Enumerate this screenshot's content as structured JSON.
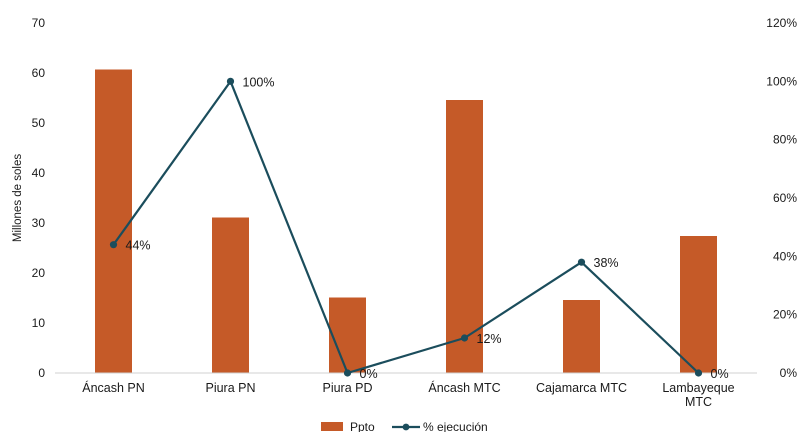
{
  "chart_data": {
    "type": "bar",
    "categories": [
      [
        "Áncash PN"
      ],
      [
        "Piura PN"
      ],
      [
        "Piura PD"
      ],
      [
        "Áncash MTC"
      ],
      [
        "Cajamarca MTC"
      ],
      [
        "Lambayeque",
        "MTC"
      ]
    ],
    "series": [
      {
        "name": "Ppto",
        "type": "bar",
        "axis": "left",
        "color": "#C55A28",
        "values": [
          60.7,
          31.1,
          15.1,
          54.6,
          14.6,
          27.4
        ]
      },
      {
        "name": "% ejecución",
        "type": "line",
        "axis": "right",
        "color": "#1B4D5C",
        "values": [
          44,
          100,
          0,
          12,
          38,
          0
        ],
        "labels": [
          "44%",
          "100%",
          "0%",
          "12%",
          "38%",
          "0%"
        ]
      }
    ],
    "ylabel": "Millones de soles",
    "ylim": [
      0,
      70
    ],
    "yticks": [
      "0",
      "10",
      "20",
      "30",
      "40",
      "50",
      "60",
      "70"
    ],
    "y2lim": [
      0,
      120
    ],
    "y2ticks": [
      "0%",
      "20%",
      "40%",
      "60%",
      "80%",
      "100%",
      "120%"
    ],
    "grid": false,
    "legend": "bottom"
  }
}
